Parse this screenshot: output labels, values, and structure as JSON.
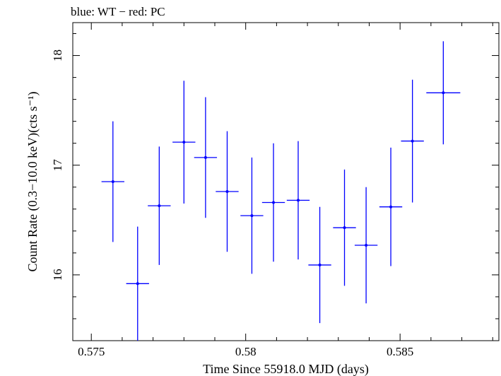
{
  "chart_data": {
    "type": "scatter",
    "title": "blue: WT − red: PC",
    "xlabel": "Time Since 55918.0 MJD (days)",
    "ylabel": "Count Rate (0.3−10.0 keV)(cts s⁻¹)",
    "xlim": [
      0.5744,
      0.5882
    ],
    "ylim": [
      15.4,
      18.3
    ],
    "xticks": [
      0.575,
      0.58,
      0.585
    ],
    "xtick_labels": [
      "0.575",
      "0.58",
      "0.585"
    ],
    "yticks": [
      16,
      17,
      18
    ],
    "ytick_labels": [
      "16",
      "17",
      "18"
    ],
    "color": "#0000ff",
    "grid": false,
    "legend": "none",
    "series": [
      {
        "x": [
          0.5757,
          0.5765,
          0.5772,
          0.578,
          0.5787,
          0.5794,
          0.5802,
          0.5809,
          0.5817,
          0.5824,
          0.5832,
          0.5839,
          0.5847,
          0.5854,
          0.5864
        ],
        "y": [
          16.85,
          15.92,
          16.63,
          17.21,
          17.07,
          16.76,
          16.54,
          16.66,
          16.68,
          16.09,
          16.43,
          16.27,
          16.62,
          17.22,
          17.66
        ],
        "xerr": [
          0.00037,
          0.00037,
          0.00037,
          0.00037,
          0.00037,
          0.00037,
          0.00037,
          0.00037,
          0.00037,
          0.00037,
          0.00037,
          0.00037,
          0.00037,
          0.00037,
          0.00055
        ],
        "yerr": [
          0.55,
          0.52,
          0.54,
          0.56,
          0.55,
          0.55,
          0.53,
          0.54,
          0.54,
          0.53,
          0.53,
          0.53,
          0.54,
          0.56,
          0.47
        ]
      }
    ]
  }
}
